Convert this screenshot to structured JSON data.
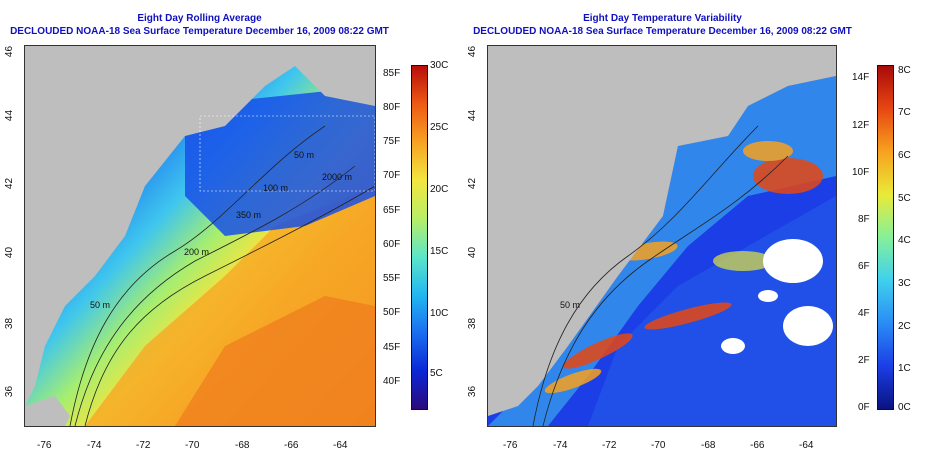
{
  "left": {
    "title": "Eight Day Rolling Average",
    "subtitle": "DECLOUDED NOAA-18 Sea Surface Temperature December 16, 2009 08:22 GMT",
    "x_ticks": [
      "-76",
      "-74",
      "-72",
      "-70",
      "-68",
      "-66",
      "-64"
    ],
    "y_ticks": [
      "46",
      "44",
      "42",
      "40",
      "38",
      "36"
    ],
    "contour_labels": [
      "50 m",
      "200 m",
      "350 m",
      "2000 m",
      "100 m",
      "50 m"
    ],
    "colorbar_f": [
      "85F",
      "80F",
      "75F",
      "70F",
      "65F",
      "60F",
      "55F",
      "50F",
      "45F",
      "40F"
    ],
    "colorbar_c": [
      "30C",
      "25C",
      "20C",
      "15C",
      "10C",
      "5C"
    ],
    "colors": [
      "#2a0a7a",
      "#0b27d6",
      "#1a6ef0",
      "#23b7f0",
      "#5ce6c8",
      "#b9ee66",
      "#f3e640",
      "#f8a223",
      "#ee5a14",
      "#b70d0a"
    ]
  },
  "right": {
    "title": "Eight Day Temperature Variability",
    "subtitle": "DECLOUDED NOAA-18 Sea Surface Temperature December 16, 2009 08:22 GMT",
    "x_ticks": [
      "-76",
      "-74",
      "-72",
      "-70",
      "-68",
      "-66",
      "-64"
    ],
    "y_ticks": [
      "46",
      "44",
      "42",
      "40",
      "38",
      "36"
    ],
    "contour_labels": [
      "50 m"
    ],
    "colorbar_f": [
      "14F",
      "12F",
      "10F",
      "8F",
      "6F",
      "4F",
      "2F",
      "0F"
    ],
    "colorbar_c": [
      "8C",
      "7C",
      "6C",
      "5C",
      "4C",
      "3C",
      "2C",
      "1C",
      "0C"
    ],
    "colors": [
      "#0a1380",
      "#1b3ee6",
      "#2a8cf5",
      "#3fd0ee",
      "#85f09a",
      "#e9ea38",
      "#f7a21f",
      "#e74712",
      "#a90a0a"
    ]
  },
  "colors": {
    "land": "#bebebe",
    "title": "#1010c0"
  }
}
